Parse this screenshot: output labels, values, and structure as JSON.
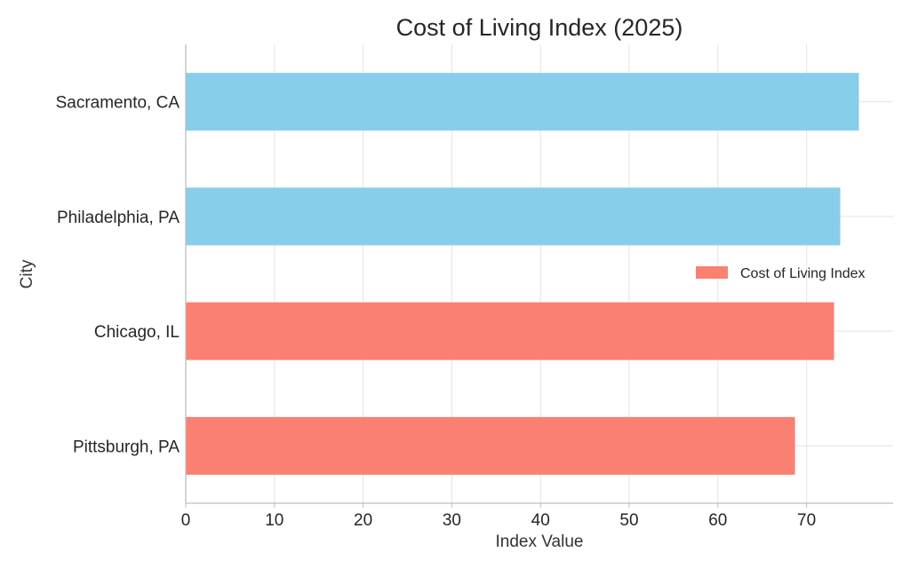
{
  "chart_data": {
    "type": "bar",
    "orientation": "horizontal",
    "title": "Cost of Living Index (2025)",
    "xlabel": "Index Value",
    "ylabel": "City",
    "categories": [
      "Sacramento, CA",
      "Philadelphia, PA",
      "Chicago, IL",
      "Pittsburgh, PA"
    ],
    "values": [
      75.9,
      73.8,
      73.1,
      68.7
    ],
    "colors": [
      "#87CEEB",
      "#87CEEB",
      "#FA8072",
      "#FA8072"
    ],
    "xlim": [
      0,
      80
    ],
    "xticks": [
      "0",
      "10",
      "20",
      "30",
      "40",
      "50",
      "60",
      "70"
    ],
    "grid": true,
    "legend": {
      "entries": [
        {
          "label": "Cost of Living Index",
          "color": "#FA8072"
        }
      ],
      "placement": "right"
    }
  }
}
